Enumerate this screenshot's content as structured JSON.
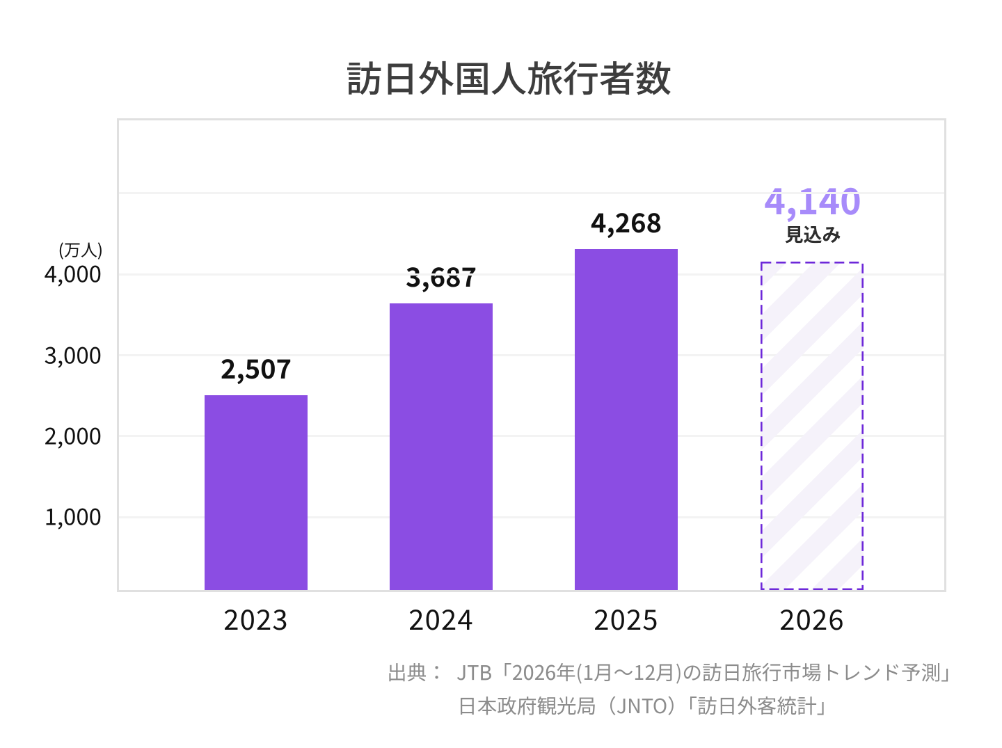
{
  "title": "訪日外国人旅行者数",
  "chart_data": {
    "type": "bar",
    "title": "訪日外国人旅行者数",
    "categories": [
      "2023",
      "2024",
      "2025",
      "2026"
    ],
    "values": [
      2507,
      3687,
      4268,
      4140
    ],
    "value_labels": [
      "2,507",
      "3,687",
      "4,268",
      "4,140"
    ],
    "unit_label": "(万人)",
    "y_ticks": [
      {
        "value": 4000,
        "label": "4,000"
      },
      {
        "value": 3000,
        "label": "3,000"
      },
      {
        "value": 2000,
        "label": "2,000"
      },
      {
        "value": 1000,
        "label": "1,000"
      }
    ],
    "gridline_values": [
      1000,
      2000,
      3000,
      4000,
      5000
    ],
    "ylim": [
      0,
      5928
    ],
    "grid": "horizontal",
    "legend": "none",
    "forecast": {
      "index": 3,
      "note": "見込み",
      "value_label": "4,140"
    },
    "colors": {
      "bar": "#8b4de3",
      "forecast_border": "#6d28d9",
      "forecast_value_text": "#a78bfa",
      "forecast_hatch": "#f5f2fa",
      "gridline": "#f3f3f3",
      "plot_border": "#e0e0e0",
      "title_text": "#3d3d3d",
      "axis_text": "#111111",
      "note_text": "#2e2e2e",
      "source_text": "#8c8c8c"
    }
  },
  "source": {
    "prefix": "出典：",
    "lines": [
      "JTB「2026年(1月～12月)の訪日旅行市場トレンド予測」",
      "日本政府観光局（JNTO）「訪日外客統計」"
    ]
  }
}
